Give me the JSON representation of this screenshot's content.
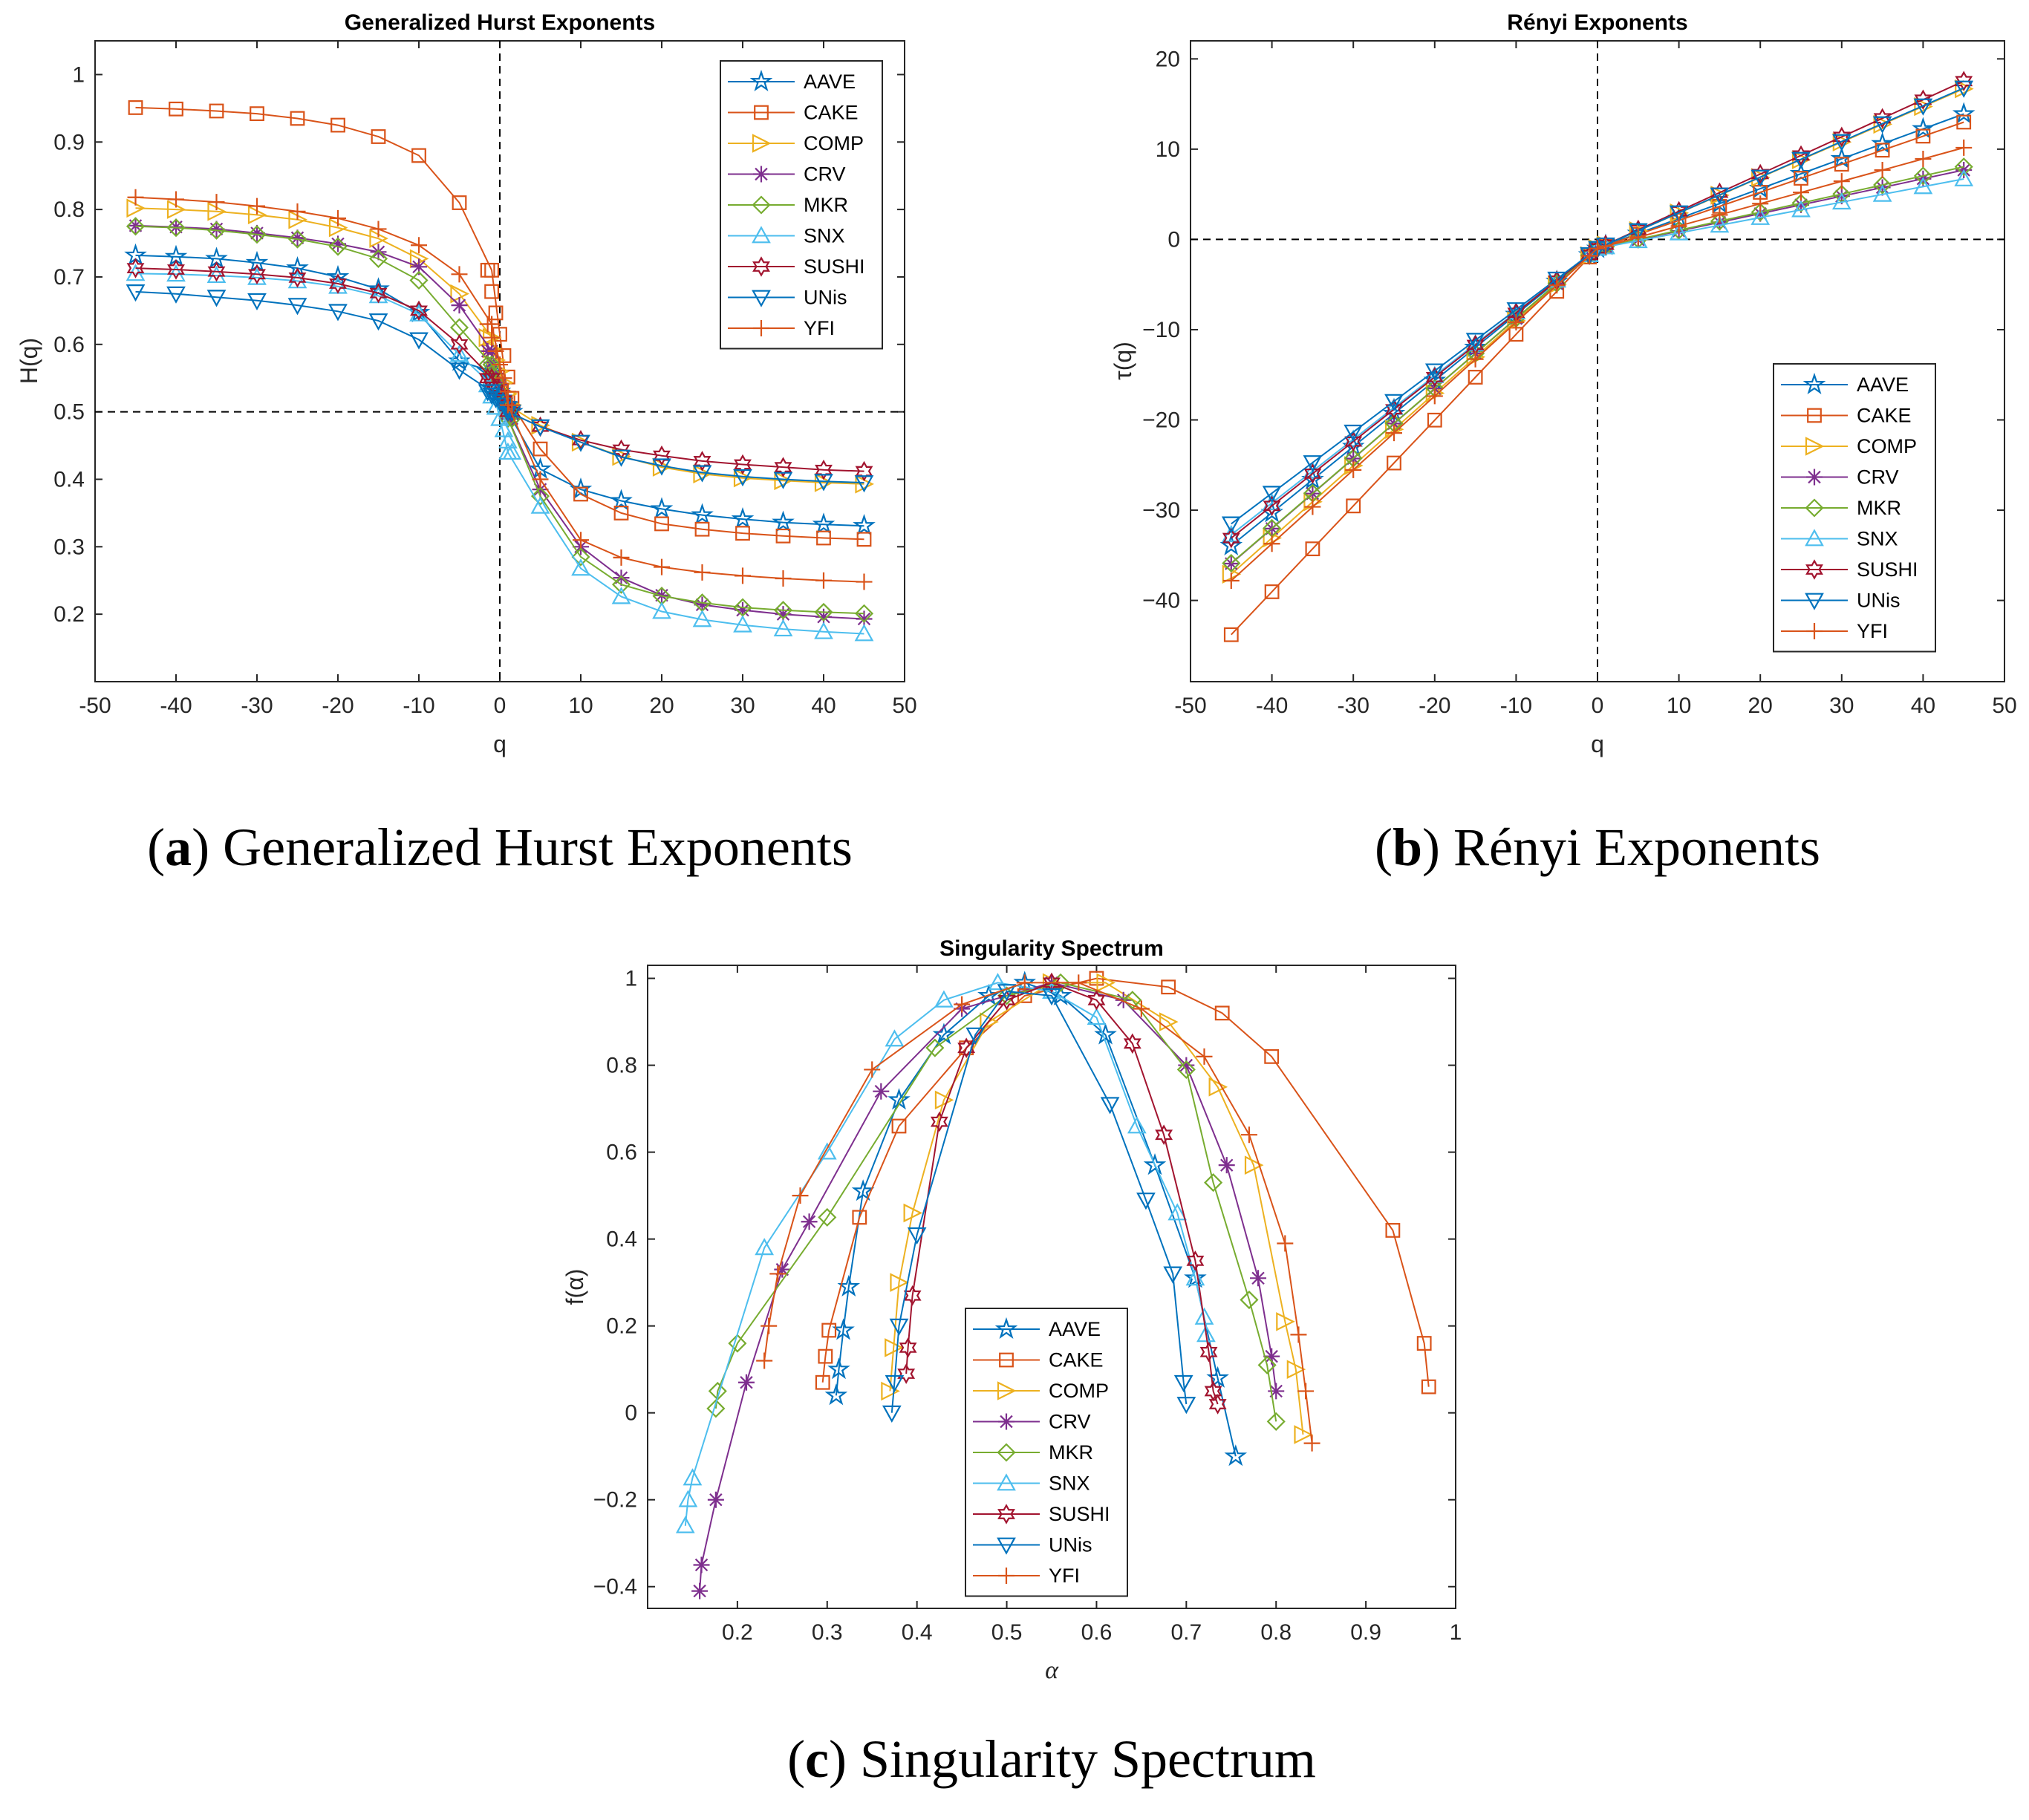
{
  "colors": {
    "AAVE": "#0072BD",
    "CAKE": "#D95319",
    "COMP": "#EDB120",
    "CRV": "#7E2F8E",
    "MKR": "#77AC30",
    "SNX": "#4DBEEE",
    "SUSHI": "#A2142F",
    "UNis": "#0072BD",
    "YFI": "#D95319"
  },
  "markers": {
    "AAVE": "star",
    "CAKE": "square",
    "COMP": "triangle-right",
    "CRV": "asterisk",
    "MKR": "diamond",
    "SNX": "triangle-up",
    "SUSHI": "hexagram",
    "UNis": "triangle-down",
    "YFI": "plus"
  },
  "captions": {
    "a": {
      "label": "a",
      "text": " Generalized Hurst Exponents"
    },
    "b": {
      "label": "b",
      "text": " Rényi Exponents"
    },
    "c": {
      "label": "c",
      "text": " Singularity Spectrum"
    }
  },
  "chart_data": [
    {
      "id": "hurst",
      "type": "line",
      "title": "Generalized Hurst Exponents",
      "xlabel": "q",
      "ylabel": "H(q)",
      "xlim": [
        -50,
        50
      ],
      "ylim": [
        0.1,
        1.05
      ],
      "xticks": [
        -50,
        -40,
        -30,
        -20,
        -10,
        0,
        10,
        20,
        30,
        40,
        50
      ],
      "yticks": [
        0.2,
        0.3,
        0.4,
        0.5,
        0.6,
        0.7,
        0.8,
        0.9,
        1
      ],
      "ytick_labels": [
        "0.2",
        "0.3",
        "0.4",
        "0.5",
        "0.6",
        "0.7",
        "0.8",
        "0.9",
        "1"
      ],
      "refline_x": 0,
      "refline_y": 0.5,
      "legend": "top-right",
      "series": [
        {
          "name": "AAVE",
          "neg": [
            0.732,
            0.73,
            0.727,
            0.721,
            0.713,
            0.7,
            0.682,
            0.647,
            0.575,
            0.56
          ],
          "pos": [
            0.5,
            0.415,
            0.385,
            0.368,
            0.356,
            0.347,
            0.341,
            0.336,
            0.333,
            0.331
          ]
        },
        {
          "name": "CAKE",
          "neg": [
            0.951,
            0.949,
            0.946,
            0.942,
            0.935,
            0.925,
            0.908,
            0.88,
            0.81,
            0.71
          ],
          "pos": [
            0.52,
            0.445,
            0.378,
            0.35,
            0.334,
            0.326,
            0.32,
            0.316,
            0.313,
            0.311
          ]
        },
        {
          "name": "COMP",
          "neg": [
            0.802,
            0.8,
            0.797,
            0.792,
            0.785,
            0.773,
            0.757,
            0.727,
            0.675,
            0.61
          ],
          "pos": [
            0.51,
            0.48,
            0.455,
            0.434,
            0.418,
            0.408,
            0.402,
            0.398,
            0.395,
            0.393
          ]
        },
        {
          "name": "CRV",
          "neg": [
            0.776,
            0.774,
            0.771,
            0.765,
            0.758,
            0.749,
            0.737,
            0.715,
            0.658,
            0.59
          ],
          "pos": [
            0.49,
            0.385,
            0.3,
            0.254,
            0.228,
            0.214,
            0.206,
            0.2,
            0.196,
            0.193
          ]
        },
        {
          "name": "MKR",
          "neg": [
            0.775,
            0.773,
            0.769,
            0.763,
            0.756,
            0.745,
            0.727,
            0.695,
            0.625,
            0.57
          ],
          "pos": [
            0.49,
            0.375,
            0.285,
            0.244,
            0.227,
            0.217,
            0.21,
            0.206,
            0.203,
            0.201
          ]
        },
        {
          "name": "SNX",
          "neg": [
            0.705,
            0.704,
            0.702,
            0.699,
            0.694,
            0.686,
            0.672,
            0.645,
            0.585,
            0.54
          ],
          "pos": [
            0.44,
            0.36,
            0.268,
            0.226,
            0.204,
            0.192,
            0.184,
            0.178,
            0.174,
            0.171
          ]
        },
        {
          "name": "SUSHI",
          "neg": [
            0.713,
            0.711,
            0.708,
            0.704,
            0.699,
            0.69,
            0.676,
            0.65,
            0.6,
            0.55
          ],
          "pos": [
            0.5,
            0.478,
            0.458,
            0.444,
            0.435,
            0.427,
            0.422,
            0.418,
            0.414,
            0.412
          ]
        },
        {
          "name": "UNis",
          "neg": [
            0.678,
            0.675,
            0.67,
            0.665,
            0.658,
            0.649,
            0.635,
            0.607,
            0.562,
            0.53
          ],
          "pos": [
            0.5,
            0.478,
            0.455,
            0.433,
            0.42,
            0.41,
            0.404,
            0.4,
            0.397,
            0.395
          ]
        },
        {
          "name": "YFI",
          "neg": [
            0.818,
            0.815,
            0.811,
            0.805,
            0.797,
            0.787,
            0.771,
            0.747,
            0.704,
            0.63
          ],
          "pos": [
            0.51,
            0.4,
            0.31,
            0.284,
            0.27,
            0.262,
            0.257,
            0.253,
            0.25,
            0.248
          ]
        }
      ]
    },
    {
      "id": "renyi",
      "type": "line",
      "title": "Rényi Exponents",
      "xlabel": "q",
      "ylabel": "τ(q)",
      "xlim": [
        -50,
        50
      ],
      "ylim": [
        -49,
        22
      ],
      "xticks": [
        -50,
        -40,
        -30,
        -20,
        -10,
        0,
        10,
        20,
        30,
        40,
        50
      ],
      "yticks": [
        -40,
        -30,
        -20,
        -10,
        0,
        10,
        20
      ],
      "ytick_labels": [
        "−40",
        "−30",
        "−20",
        "−10",
        "0",
        "10",
        "20"
      ],
      "refline_x": 0,
      "refline_y": 0,
      "legend": "bottom-right",
      "series": [
        {
          "name": "AAVE",
          "hneg": 0.732,
          "hpos": 0.331
        },
        {
          "name": "CAKE",
          "hneg": 0.951,
          "hpos": 0.311
        },
        {
          "name": "COMP",
          "hneg": 0.802,
          "hpos": 0.393
        },
        {
          "name": "CRV",
          "hneg": 0.776,
          "hpos": 0.193
        },
        {
          "name": "MKR",
          "hneg": 0.775,
          "hpos": 0.201
        },
        {
          "name": "SNX",
          "hneg": 0.705,
          "hpos": 0.171
        },
        {
          "name": "SUSHI",
          "hneg": 0.713,
          "hpos": 0.412
        },
        {
          "name": "UNis",
          "hneg": 0.678,
          "hpos": 0.395
        },
        {
          "name": "YFI",
          "hneg": 0.818,
          "hpos": 0.248
        }
      ]
    },
    {
      "id": "spectrum",
      "type": "line",
      "title": "Singularity Spectrum",
      "xlabel": "α",
      "ylabel": "f(α)",
      "xlim": [
        0.1,
        1.0
      ],
      "ylim": [
        -0.45,
        1.03
      ],
      "xticks": [
        0.2,
        0.3,
        0.4,
        0.5,
        0.6,
        0.7,
        0.8,
        0.9,
        1
      ],
      "yticks": [
        -0.4,
        -0.2,
        0,
        0.2,
        0.4,
        0.6,
        0.8,
        1
      ],
      "ytick_labels": [
        "−0.4",
        "−0.2",
        "0",
        "0.2",
        "0.4",
        "0.6",
        "0.8",
        "1"
      ],
      "legend": "bottom-center",
      "series": [
        {
          "name": "AAVE",
          "points": [
            [
              0.31,
              0.04
            ],
            [
              0.313,
              0.1
            ],
            [
              0.318,
              0.19
            ],
            [
              0.324,
              0.29
            ],
            [
              0.34,
              0.51
            ],
            [
              0.38,
              0.72
            ],
            [
              0.43,
              0.87
            ],
            [
              0.48,
              0.96
            ],
            [
              0.52,
              0.99
            ],
            [
              0.56,
              0.96
            ],
            [
              0.61,
              0.87
            ],
            [
              0.665,
              0.57
            ],
            [
              0.71,
              0.31
            ],
            [
              0.735,
              0.08
            ],
            [
              0.755,
              -0.1
            ]
          ]
        },
        {
          "name": "CAKE",
          "points": [
            [
              0.295,
              0.07
            ],
            [
              0.298,
              0.13
            ],
            [
              0.302,
              0.19
            ],
            [
              0.336,
              0.45
            ],
            [
              0.38,
              0.66
            ],
            [
              0.455,
              0.84
            ],
            [
              0.52,
              0.96
            ],
            [
              0.6,
              1.0
            ],
            [
              0.68,
              0.98
            ],
            [
              0.74,
              0.92
            ],
            [
              0.795,
              0.82
            ],
            [
              0.93,
              0.42
            ],
            [
              0.965,
              0.16
            ],
            [
              0.97,
              0.06
            ]
          ]
        },
        {
          "name": "COMP",
          "points": [
            [
              0.37,
              0.05
            ],
            [
              0.374,
              0.15
            ],
            [
              0.38,
              0.3
            ],
            [
              0.395,
              0.46
            ],
            [
              0.43,
              0.72
            ],
            [
              0.48,
              0.9
            ],
            [
              0.55,
              0.99
            ],
            [
              0.61,
              0.99
            ],
            [
              0.68,
              0.9
            ],
            [
              0.735,
              0.75
            ],
            [
              0.775,
              0.57
            ],
            [
              0.81,
              0.21
            ],
            [
              0.822,
              0.1
            ],
            [
              0.83,
              -0.05
            ]
          ]
        },
        {
          "name": "CRV",
          "points": [
            [
              0.158,
              -0.41
            ],
            [
              0.16,
              -0.35
            ],
            [
              0.176,
              -0.2
            ],
            [
              0.21,
              0.07
            ],
            [
              0.25,
              0.33
            ],
            [
              0.28,
              0.44
            ],
            [
              0.36,
              0.74
            ],
            [
              0.45,
              0.93
            ],
            [
              0.55,
              0.99
            ],
            [
              0.63,
              0.95
            ],
            [
              0.7,
              0.8
            ],
            [
              0.745,
              0.57
            ],
            [
              0.78,
              0.31
            ],
            [
              0.795,
              0.13
            ],
            [
              0.8,
              0.05
            ]
          ]
        },
        {
          "name": "MKR",
          "points": [
            [
              0.176,
              0.01
            ],
            [
              0.178,
              0.05
            ],
            [
              0.2,
              0.16
            ],
            [
              0.3,
              0.45
            ],
            [
              0.42,
              0.84
            ],
            [
              0.5,
              0.96
            ],
            [
              0.56,
              0.99
            ],
            [
              0.64,
              0.95
            ],
            [
              0.7,
              0.79
            ],
            [
              0.73,
              0.53
            ],
            [
              0.77,
              0.26
            ],
            [
              0.79,
              0.11
            ],
            [
              0.8,
              -0.02
            ]
          ]
        },
        {
          "name": "SNX",
          "points": [
            [
              0.142,
              -0.26
            ],
            [
              0.145,
              -0.2
            ],
            [
              0.15,
              -0.15
            ],
            [
              0.23,
              0.38
            ],
            [
              0.3,
              0.6
            ],
            [
              0.375,
              0.86
            ],
            [
              0.43,
              0.95
            ],
            [
              0.49,
              0.99
            ],
            [
              0.55,
              0.97
            ],
            [
              0.6,
              0.91
            ],
            [
              0.645,
              0.66
            ],
            [
              0.69,
              0.46
            ],
            [
              0.71,
              0.31
            ],
            [
              0.72,
              0.22
            ],
            [
              0.722,
              0.18
            ]
          ]
        },
        {
          "name": "SUSHI",
          "points": [
            [
              0.388,
              0.09
            ],
            [
              0.39,
              0.15
            ],
            [
              0.395,
              0.27
            ],
            [
              0.425,
              0.67
            ],
            [
              0.455,
              0.84
            ],
            [
              0.5,
              0.95
            ],
            [
              0.55,
              0.99
            ],
            [
              0.6,
              0.95
            ],
            [
              0.64,
              0.85
            ],
            [
              0.675,
              0.64
            ],
            [
              0.71,
              0.35
            ],
            [
              0.725,
              0.14
            ],
            [
              0.73,
              0.05
            ],
            [
              0.735,
              0.02
            ]
          ]
        },
        {
          "name": "UNis",
          "points": [
            [
              0.372,
              0.0
            ],
            [
              0.375,
              0.07
            ],
            [
              0.38,
              0.2
            ],
            [
              0.4,
              0.41
            ],
            [
              0.465,
              0.87
            ],
            [
              0.5,
              0.97
            ],
            [
              0.55,
              0.96
            ],
            [
              0.615,
              0.71
            ],
            [
              0.655,
              0.49
            ],
            [
              0.685,
              0.32
            ],
            [
              0.697,
              0.07
            ],
            [
              0.7,
              0.02
            ]
          ]
        },
        {
          "name": "YFI",
          "points": [
            [
              0.23,
              0.12
            ],
            [
              0.235,
              0.2
            ],
            [
              0.245,
              0.32
            ],
            [
              0.27,
              0.5
            ],
            [
              0.35,
              0.79
            ],
            [
              0.45,
              0.94
            ],
            [
              0.52,
              0.99
            ],
            [
              0.58,
              0.99
            ],
            [
              0.65,
              0.93
            ],
            [
              0.72,
              0.82
            ],
            [
              0.77,
              0.64
            ],
            [
              0.81,
              0.39
            ],
            [
              0.825,
              0.18
            ],
            [
              0.833,
              0.05
            ],
            [
              0.84,
              -0.07
            ]
          ]
        }
      ]
    }
  ]
}
